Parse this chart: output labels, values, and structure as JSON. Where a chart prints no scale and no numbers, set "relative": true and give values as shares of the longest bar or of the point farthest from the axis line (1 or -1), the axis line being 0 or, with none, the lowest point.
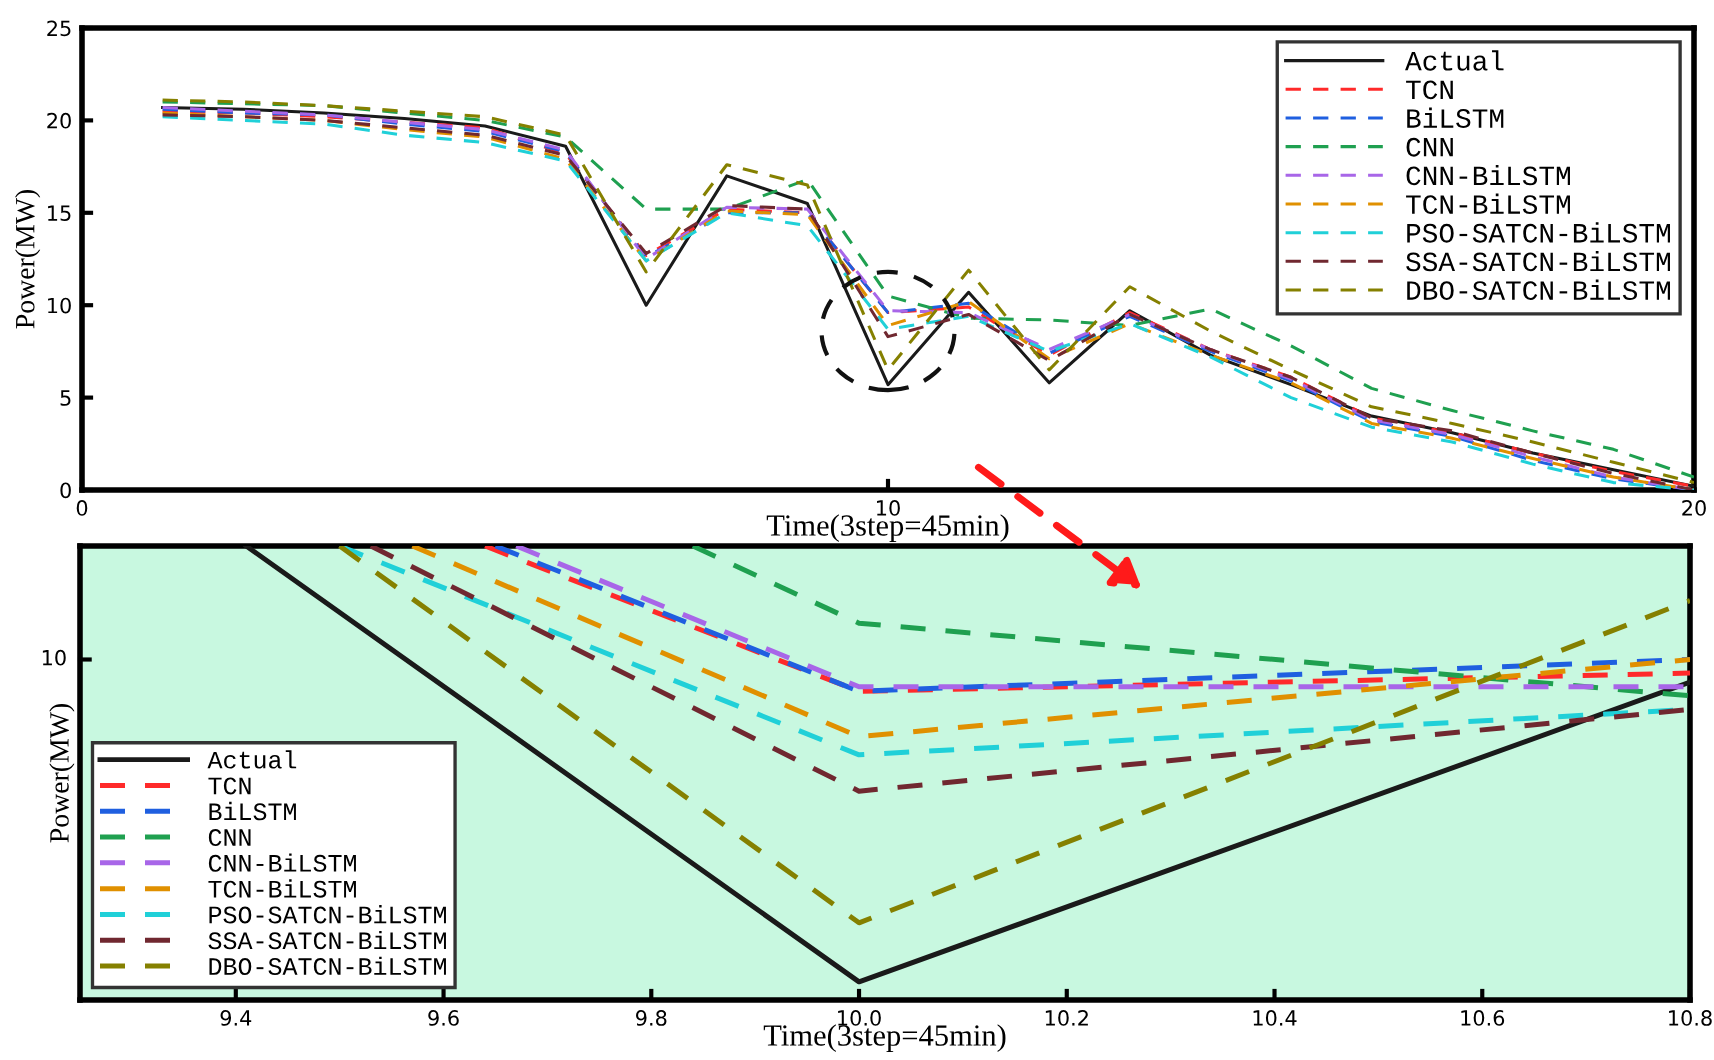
{
  "chart_data": [
    {
      "type": "line",
      "xlabel": "Time(3step=45min)",
      "ylabel": "Power(MW)",
      "xlim": [
        0,
        20
      ],
      "ylim": [
        0,
        25
      ],
      "xticks": [
        0,
        10,
        20
      ],
      "yticks": [
        0,
        5,
        10,
        15,
        20,
        25
      ],
      "legend": "top right",
      "marker": "none",
      "x": [
        1,
        2,
        3,
        4,
        5,
        6,
        7,
        8,
        9,
        10,
        11,
        12,
        13,
        14,
        15,
        16,
        17,
        18,
        19,
        20
      ],
      "series": [
        {
          "name": "Actual",
          "color": "#1a1a1a",
          "line_style": "solid",
          "values": [
            20.7,
            20.6,
            20.4,
            20.1,
            19.7,
            18.6,
            10.0,
            17.0,
            15.5,
            5.7,
            10.7,
            5.8,
            9.7,
            7.3,
            5.7,
            4.0,
            3.1,
            2.0,
            1.1,
            0.2
          ]
        },
        {
          "name": "TCN",
          "color": "#ff2a2a",
          "line_style": "dashed",
          "values": [
            20.5,
            20.4,
            20.2,
            19.9,
            19.6,
            18.2,
            12.7,
            15.2,
            15.0,
            9.6,
            9.9,
            7.3,
            9.6,
            7.6,
            6.1,
            3.9,
            3.1,
            2.0,
            1.0,
            0.2
          ]
        },
        {
          "name": "BiLSTM",
          "color": "#1f5fe0",
          "line_style": "dashed",
          "values": [
            20.6,
            20.4,
            20.3,
            19.8,
            19.4,
            18.3,
            12.6,
            15.0,
            15.0,
            9.6,
            10.1,
            7.4,
            9.4,
            7.5,
            5.9,
            3.7,
            2.9,
            1.6,
            0.6,
            0.0
          ]
        },
        {
          "name": "CNN",
          "color": "#1fa050",
          "line_style": "dashed",
          "values": [
            21.0,
            20.9,
            20.8,
            20.4,
            20.0,
            19.1,
            15.2,
            15.2,
            16.8,
            10.5,
            9.3,
            9.2,
            8.9,
            9.8,
            7.8,
            5.5,
            4.3,
            3.2,
            2.2,
            0.7
          ]
        },
        {
          "name": "CNN-BiLSTM",
          "color": "#a866e8",
          "line_style": "dashed",
          "values": [
            20.7,
            20.5,
            20.3,
            19.9,
            19.5,
            18.4,
            12.5,
            15.3,
            15.2,
            9.7,
            9.6,
            7.6,
            9.5,
            7.6,
            6.0,
            3.8,
            3.0,
            1.8,
            0.7,
            0.0
          ]
        },
        {
          "name": "TCN-BiLSTM",
          "color": "#e09000",
          "line_style": "dashed",
          "values": [
            20.4,
            20.2,
            20.0,
            19.5,
            19.1,
            17.9,
            12.4,
            15.1,
            14.9,
            8.9,
            10.2,
            7.1,
            9.0,
            7.3,
            5.8,
            3.6,
            2.8,
            1.7,
            0.7,
            0.0
          ]
        },
        {
          "name": "PSO-SATCN-BiLSTM",
          "color": "#20d0d8",
          "line_style": "dashed",
          "values": [
            20.2,
            20.0,
            19.8,
            19.2,
            18.8,
            17.8,
            12.4,
            15.0,
            14.3,
            8.7,
            9.4,
            7.5,
            9.0,
            7.2,
            5.0,
            3.4,
            2.6,
            1.4,
            0.4,
            0.0
          ]
        },
        {
          "name": "SSA-SATCN-BiLSTM",
          "color": "#702830",
          "line_style": "dashed",
          "values": [
            20.3,
            20.2,
            20.0,
            19.6,
            19.2,
            18.1,
            12.8,
            15.4,
            15.2,
            8.3,
            9.5,
            7.0,
            9.5,
            7.6,
            6.1,
            3.9,
            3.2,
            2.0,
            0.9,
            0.0
          ]
        },
        {
          "name": "DBO-SATCN-BiLSTM",
          "color": "#858000",
          "line_style": "dashed",
          "values": [
            21.1,
            21.0,
            20.8,
            20.5,
            20.2,
            19.2,
            11.8,
            17.6,
            16.5,
            6.5,
            11.9,
            6.5,
            11.0,
            8.6,
            6.5,
            4.5,
            3.6,
            2.6,
            1.5,
            0.4
          ]
        }
      ]
    },
    {
      "type": "line",
      "xlabel": "Time(3step=45min)",
      "ylabel": "Power(MW)",
      "xlim": [
        9.25,
        10.8
      ],
      "xticks": [
        9.4,
        9.6,
        9.8,
        {
          "value": 10,
          "label": "10.0"
        },
        10.2,
        10.4,
        10.6,
        10.8
      ],
      "relative": true,
      "annotations": [
        "10"
      ],
      "legend": "bottom left",
      "marker": "none",
      "series": [
        {
          "name": "Actual",
          "color": "#1a1a1a",
          "line_style": "solid",
          "x": [
            9.41,
            10,
            10.8
          ],
          "values": [
            1,
            0.04,
            0.7
          ]
        },
        {
          "name": "TCN",
          "color": "#ff2a2a",
          "line_style": "dashed",
          "x": [
            9.64,
            10,
            10.8
          ],
          "values": [
            1,
            0.68,
            0.72
          ]
        },
        {
          "name": "BiLSTM",
          "color": "#1f5fe0",
          "line_style": "dashed",
          "x": [
            9.65,
            10,
            10.8
          ],
          "values": [
            1,
            0.68,
            0.75
          ]
        },
        {
          "name": "CNN",
          "color": "#1fa050",
          "line_style": "dashed",
          "x": [
            9.84,
            10,
            10.8
          ],
          "values": [
            1,
            0.83,
            0.67
          ]
        },
        {
          "name": "CNN-BiLSTM",
          "color": "#a866e8",
          "line_style": "dashed",
          "x": [
            9.67,
            10,
            10.8
          ],
          "values": [
            1,
            0.69,
            0.69
          ]
        },
        {
          "name": "TCN-BiLSTM",
          "color": "#e09000",
          "line_style": "dashed",
          "x": [
            9.57,
            10,
            10.8
          ],
          "values": [
            1,
            0.58,
            0.75
          ]
        },
        {
          "name": "PSO-SATCN-BiLSTM",
          "color": "#20d0d8",
          "line_style": "dashed",
          "x": [
            9.5,
            10,
            10.8
          ],
          "values": [
            1,
            0.54,
            0.64
          ]
        },
        {
          "name": "SSA-SATCN-BiLSTM",
          "color": "#702830",
          "line_style": "dashed",
          "x": [
            9.53,
            10,
            10.8
          ],
          "values": [
            1,
            0.46,
            0.64
          ]
        },
        {
          "name": "DBO-SATCN-BiLSTM",
          "color": "#858000",
          "line_style": "dashed",
          "x": [
            9.5,
            10,
            10.8
          ],
          "values": [
            1,
            0.17,
            0.88
          ]
        }
      ]
    }
  ]
}
